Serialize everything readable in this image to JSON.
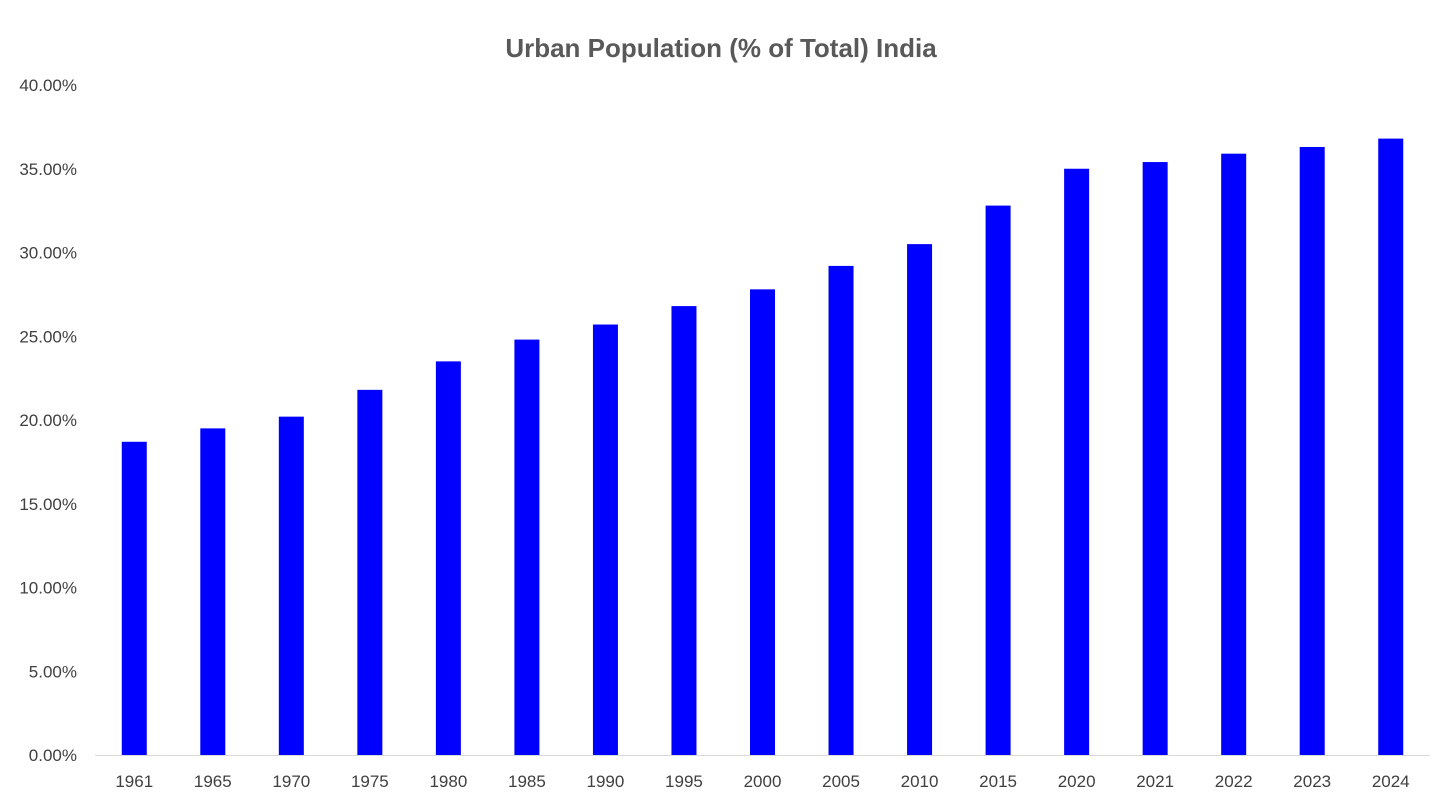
{
  "chart_data": {
    "type": "bar",
    "title": "Urban Population (% of Total) India",
    "xlabel": "",
    "ylabel": "",
    "categories": [
      "1961",
      "1965",
      "1970",
      "1975",
      "1980",
      "1985",
      "1990",
      "1995",
      "2000",
      "2005",
      "2010",
      "2015",
      "2020",
      "2021",
      "2022",
      "2023",
      "2024"
    ],
    "values": [
      18.7,
      19.5,
      20.2,
      21.8,
      23.5,
      24.8,
      25.7,
      26.8,
      27.8,
      29.2,
      30.5,
      32.8,
      35.0,
      35.4,
      35.9,
      36.3,
      36.8
    ],
    "ylim": [
      0,
      40
    ],
    "yticks": [
      0,
      5,
      10,
      15,
      20,
      25,
      30,
      35,
      40
    ],
    "ytick_labels": [
      "0.00%",
      "5.00%",
      "10.00%",
      "15.00%",
      "20.00%",
      "25.00%",
      "30.00%",
      "35.00%",
      "40.00%"
    ],
    "grid": false,
    "legend": "none",
    "bar_color": "#0000FF",
    "axis_color": "#D9D9D9",
    "text_color": "#404040",
    "title_color": "#595959"
  }
}
